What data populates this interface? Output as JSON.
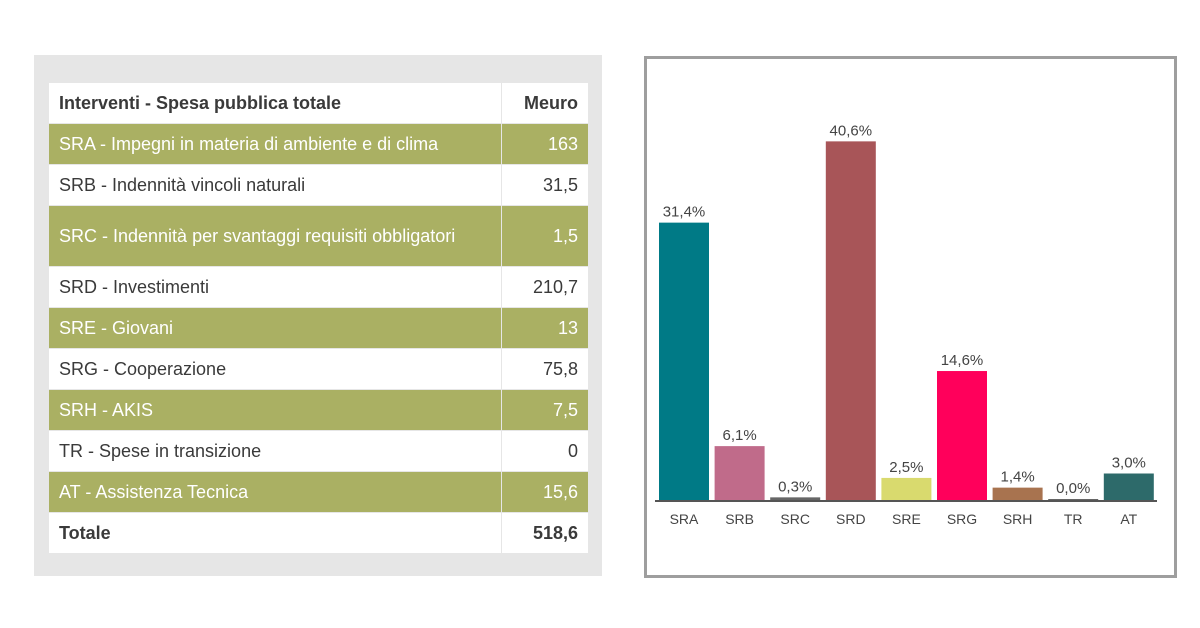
{
  "table": {
    "header": {
      "label": "Interventi - Spesa pubblica totale",
      "value": "Meuro"
    },
    "rows": [
      {
        "label": "SRA - Impegni in materia di ambiente e di clima",
        "value": "163",
        "style": "olive"
      },
      {
        "label": "SRB - Indennità vincoli naturali",
        "value": "31,5",
        "style": "white"
      },
      {
        "label": "SRC - Indennità per svantaggi requisiti obbligatori",
        "value": "1,5",
        "style": "olive"
      },
      {
        "label": "SRD - Investimenti",
        "value": "210,7",
        "style": "white"
      },
      {
        "label": "SRE - Giovani",
        "value": "13",
        "style": "olive"
      },
      {
        "label": "SRG - Cooperazione",
        "value": "75,8",
        "style": "white"
      },
      {
        "label": "SRH - AKIS",
        "value": "7,5",
        "style": "olive"
      },
      {
        "label": "TR - Spese in transizione",
        "value": "0",
        "style": "white"
      },
      {
        "label": "AT - Assistenza Tecnica",
        "value": "15,6",
        "style": "olive"
      }
    ],
    "total": {
      "label": "Totale",
      "value": "518,6"
    },
    "colors": {
      "olive": "#aab063",
      "panel": "#e6e6e6"
    }
  },
  "chart_data": {
    "type": "bar",
    "title": "",
    "xlabel": "",
    "ylabel": "",
    "categories": [
      "SRA",
      "SRB",
      "SRC",
      "SRD",
      "SRE",
      "SRG",
      "SRH",
      "TR",
      "AT"
    ],
    "values": [
      31.4,
      6.1,
      0.3,
      40.6,
      2.5,
      14.6,
      1.4,
      0.0,
      3.0
    ],
    "value_labels": [
      "31,4%",
      "6,1%",
      "0,3%",
      "40,6%",
      "2,5%",
      "14,6%",
      "1,4%",
      "0,0%",
      "3,0%"
    ],
    "colors": [
      "#007a86",
      "#c06b8a",
      "#666666",
      "#a85558",
      "#d9da6e",
      "#ff005b",
      "#a8734f",
      "#666666",
      "#2d6a6a"
    ],
    "ylim": [
      0,
      42
    ],
    "grid": false,
    "legend": "none"
  }
}
